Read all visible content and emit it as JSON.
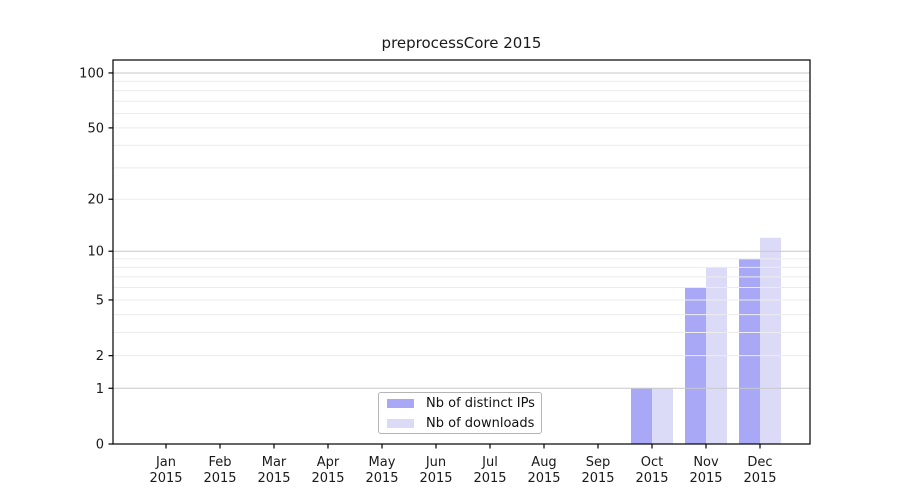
{
  "chart_data": {
    "type": "bar",
    "title": "preprocessCore 2015",
    "categories": [
      {
        "month": "Jan",
        "year": "2015"
      },
      {
        "month": "Feb",
        "year": "2015"
      },
      {
        "month": "Mar",
        "year": "2015"
      },
      {
        "month": "Apr",
        "year": "2015"
      },
      {
        "month": "May",
        "year": "2015"
      },
      {
        "month": "Jun",
        "year": "2015"
      },
      {
        "month": "Jul",
        "year": "2015"
      },
      {
        "month": "Aug",
        "year": "2015"
      },
      {
        "month": "Sep",
        "year": "2015"
      },
      {
        "month": "Oct",
        "year": "2015"
      },
      {
        "month": "Nov",
        "year": "2015"
      },
      {
        "month": "Dec",
        "year": "2015"
      }
    ],
    "series": [
      {
        "name": "Nb of distinct IPs",
        "color": "#a8a8f6",
        "values": [
          0,
          0,
          0,
          0,
          0,
          0,
          0,
          0,
          0,
          1,
          6,
          9
        ]
      },
      {
        "name": "Nb of downloads",
        "color": "#dbdbf8",
        "values": [
          0,
          0,
          0,
          0,
          0,
          0,
          0,
          0,
          0,
          1,
          8,
          12
        ]
      }
    ],
    "y_axis": {
      "scale": "log1p",
      "ticks": [
        0,
        1,
        2,
        5,
        10,
        20,
        50,
        100
      ],
      "major_gridlines": [
        1,
        10,
        100
      ],
      "minor_gridlines": [
        2,
        3,
        4,
        5,
        6,
        7,
        8,
        9,
        20,
        30,
        40,
        50,
        60,
        70,
        80,
        90
      ],
      "ylim": [
        0,
        118
      ]
    },
    "legend_position": "inside-bottom-center",
    "grid": true
  },
  "colors": {
    "grid_minor": "#ececec",
    "grid_major": "#c8c8c8",
    "axis": "#000000",
    "text": "#1a1a1a",
    "legend_border": "#b4b4b4",
    "background": "#ffffff"
  }
}
